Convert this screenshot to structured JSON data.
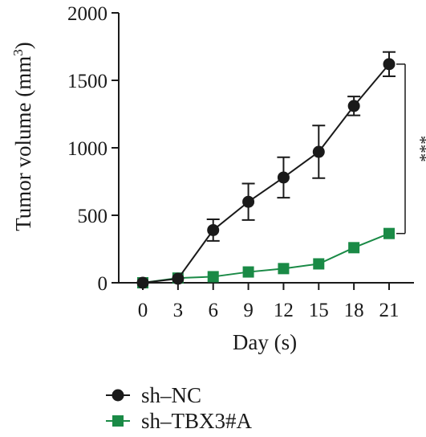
{
  "chart_data": {
    "type": "line",
    "xlabel": "Day (s)",
    "ylabel": "Tumor volume (mm³)",
    "ylabel_main": "Tumor volume (mm",
    "ylabel_sup": "3",
    "ylabel_close": ")",
    "x": [
      0,
      3,
      6,
      9,
      12,
      15,
      18,
      21
    ],
    "x_tick_labels": [
      "0",
      "3",
      "6",
      "9",
      "12",
      "15",
      "18",
      "21"
    ],
    "y_ticks": [
      0,
      500,
      1000,
      1500,
      2000
    ],
    "y_tick_labels": [
      "0",
      "500",
      "1000",
      "1500",
      "2000"
    ],
    "xlim": [
      0,
      21
    ],
    "ylim": [
      0,
      2000
    ],
    "grid": false,
    "legend_position": "bottom-left",
    "significance": "***",
    "series": [
      {
        "name": "sh–NC",
        "color": "#1a1a1a",
        "marker": "circle",
        "values": [
          0,
          30,
          390,
          600,
          780,
          970,
          1310,
          1620
        ],
        "error": [
          0,
          0,
          80,
          135,
          150,
          195,
          70,
          90
        ]
      },
      {
        "name": "sh–TBX3#A",
        "color": "#1a8a46",
        "marker": "square",
        "values": [
          0,
          35,
          45,
          80,
          105,
          140,
          260,
          365
        ],
        "error": [
          0,
          0,
          0,
          0,
          0,
          0,
          0,
          0
        ]
      }
    ]
  }
}
